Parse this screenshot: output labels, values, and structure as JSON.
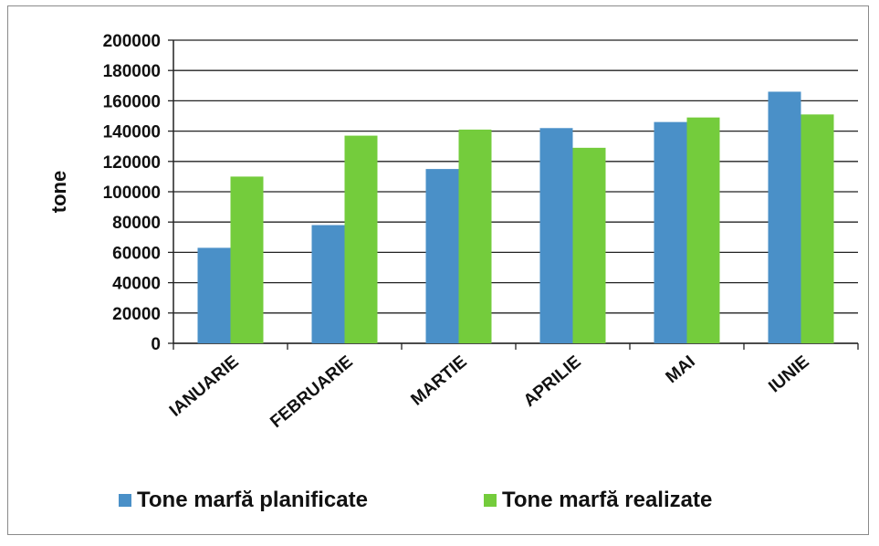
{
  "chart_data": {
    "type": "bar",
    "title": "",
    "xlabel": "",
    "ylabel": "tone",
    "ylim": [
      0,
      200000
    ],
    "yticks": [
      "0",
      "20000",
      "40000",
      "60000",
      "80000",
      "100000",
      "120000",
      "140000",
      "160000",
      "180000",
      "200000"
    ],
    "grid": true,
    "legend_position": "bottom",
    "categories": [
      "IANUARIE",
      "FEBRUARIE",
      "MARTIE",
      "APRILIE",
      "MAI",
      "IUNIE"
    ],
    "series": [
      {
        "name": "Tone marfă planificate",
        "color": "#4a90c8",
        "values": [
          63000,
          78000,
          115000,
          142000,
          146000,
          166000
        ]
      },
      {
        "name": "Tone marfă realizate",
        "color": "#74cc3c",
        "values": [
          110000,
          137000,
          141000,
          129000,
          149000,
          151000
        ]
      }
    ]
  }
}
